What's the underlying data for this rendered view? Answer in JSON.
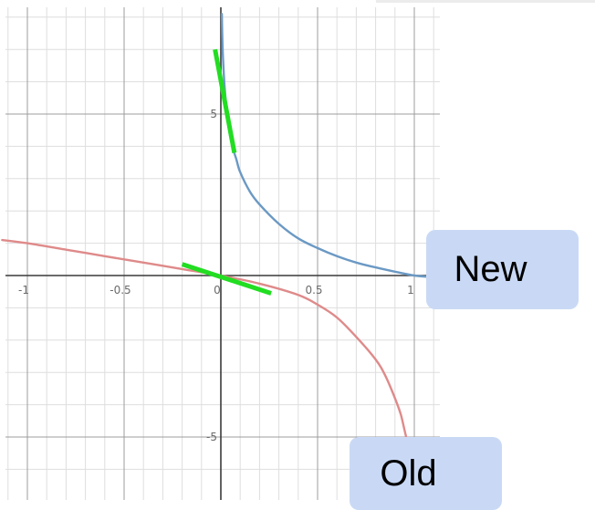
{
  "chart_data": {
    "type": "line",
    "xlim": [
      -1.13,
      1.14
    ],
    "ylim": [
      -7.0,
      8.1
    ],
    "x_ticks": [
      -1,
      -0.5,
      0,
      0.5,
      1
    ],
    "x_tick_labels": [
      "-1",
      "-0.5",
      "0",
      "0.5",
      "1"
    ],
    "y_ticks": [
      5,
      -5
    ],
    "y_tick_labels": [
      "5",
      "-5"
    ],
    "grid": true,
    "series": [
      {
        "name": "New",
        "color": "#6b99c4",
        "x": [
          0.005,
          0.01,
          0.02,
          0.04,
          0.06,
          0.08,
          0.1,
          0.15,
          0.2,
          0.3,
          0.4,
          0.5,
          0.6,
          0.7,
          0.8,
          0.9,
          1.0,
          1.1
        ],
        "y": [
          8.1,
          6.9,
          5.8,
          4.6,
          4.0,
          3.6,
          3.2,
          2.6,
          2.2,
          1.6,
          1.15,
          0.85,
          0.6,
          0.4,
          0.25,
          0.12,
          0.0,
          -0.05
        ]
      },
      {
        "name": "Old",
        "color": "#df8a8a",
        "x": [
          -1.13,
          -1.0,
          -0.8,
          -0.6,
          -0.4,
          -0.2,
          0.0,
          0.2,
          0.4,
          0.5,
          0.6,
          0.7,
          0.8,
          0.85,
          0.9,
          0.93,
          0.95,
          0.97
        ],
        "y": [
          1.1,
          1.0,
          0.8,
          0.6,
          0.4,
          0.2,
          0.0,
          -0.25,
          -0.6,
          -0.9,
          -1.3,
          -1.9,
          -2.6,
          -3.1,
          -3.8,
          -4.3,
          -4.8,
          -5.3
        ]
      }
    ],
    "tangent_lines": [
      {
        "color": "#22dd22",
        "x": [
          -0.2,
          0.26
        ],
        "y": [
          0.35,
          -0.55
        ]
      },
      {
        "color": "#22dd22",
        "x": [
          -0.03,
          0.07
        ],
        "y": [
          7.0,
          3.8
        ]
      }
    ],
    "annotations": [
      "New",
      "Old"
    ]
  },
  "labels": {
    "new": "New",
    "old": "Old"
  }
}
